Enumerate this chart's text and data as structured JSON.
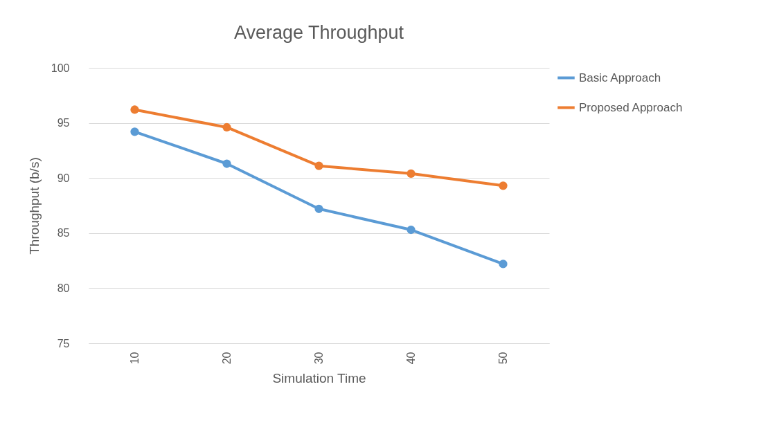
{
  "chart_data": {
    "type": "line",
    "title": "Average Throughput",
    "xlabel": "Simulation Time",
    "ylabel": "Throughput (b/s)",
    "categories": [
      "10",
      "20",
      "30",
      "40",
      "50"
    ],
    "series": [
      {
        "name": "Basic Approach",
        "color": "#5b9bd5",
        "values": [
          94.2,
          91.3,
          87.2,
          85.3,
          82.2
        ]
      },
      {
        "name": "Proposed Approach",
        "color": "#ed7d31",
        "values": [
          96.2,
          94.6,
          91.1,
          90.4,
          89.3
        ]
      }
    ],
    "ylim": [
      75,
      100
    ],
    "yticks": [
      75,
      80,
      85,
      90,
      95,
      100
    ],
    "grid": "y",
    "legend": "right",
    "marker": "circle",
    "line_style": "solid"
  }
}
